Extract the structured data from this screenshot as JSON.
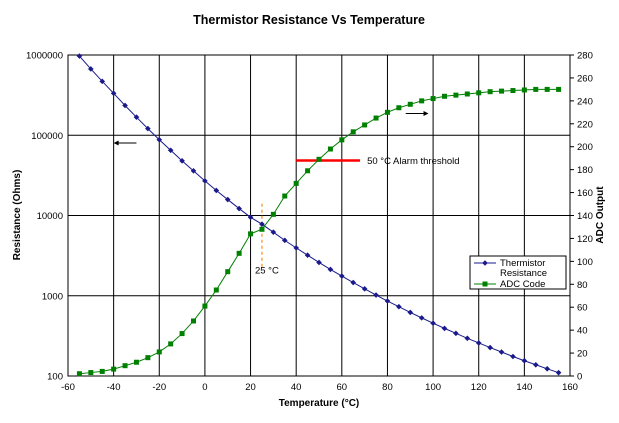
{
  "chart_data": {
    "type": "line",
    "title": "Thermistor Resistance Vs Temperature",
    "xlabel": "Temperature (°C)",
    "ylabel": "Resistance (Ohms)",
    "y2label": "ADC Output",
    "xlim": [
      -60,
      160
    ],
    "ylim": [
      100,
      1000000
    ],
    "yscale": "log",
    "y2lim": [
      0,
      280
    ],
    "xticks": [
      -60,
      -40,
      -20,
      0,
      20,
      40,
      60,
      80,
      100,
      120,
      140,
      160
    ],
    "yticks": [
      100,
      1000,
      10000,
      100000,
      1000000
    ],
    "ytick_labels": [
      "100",
      "1000",
      "10000",
      "100000",
      "1000000"
    ],
    "y2ticks": [
      0,
      20,
      40,
      60,
      80,
      100,
      120,
      140,
      160,
      180,
      200,
      220,
      240,
      260,
      280
    ],
    "grid": true,
    "legend_position": "right",
    "x": [
      -55,
      -50,
      -45,
      -40,
      -35,
      -30,
      -25,
      -20,
      -15,
      -10,
      -5,
      0,
      5,
      10,
      15,
      20,
      25,
      30,
      35,
      40,
      45,
      50,
      55,
      60,
      65,
      70,
      75,
      80,
      85,
      90,
      95,
      100,
      105,
      110,
      115,
      120,
      125,
      130,
      135,
      140,
      145,
      150,
      155
    ],
    "series": [
      {
        "name": "Thermistor Resistance",
        "axis": "left",
        "color": "#1a1a8c",
        "marker": "diamond",
        "values": [
          970000,
          670000,
          470000,
          333000,
          235000,
          168000,
          121000,
          88000,
          65000,
          48000,
          36000,
          27000,
          20500,
          15800,
          12200,
          9500,
          7800,
          6200,
          4900,
          3950,
          3200,
          2600,
          2130,
          1760,
          1460,
          1220,
          1020,
          860,
          730,
          620,
          530,
          455,
          392,
          340,
          295,
          258,
          226,
          199,
          175,
          155,
          138,
          123,
          110
        ]
      },
      {
        "name": "ADC Code",
        "axis": "right",
        "color": "#008000",
        "marker": "square",
        "values": [
          2,
          3,
          4,
          6,
          9,
          12,
          16,
          21,
          28,
          37,
          48,
          61,
          75,
          91,
          107,
          124,
          128,
          141,
          157,
          168,
          179,
          189,
          198,
          206,
          213,
          219,
          225,
          230,
          234,
          237,
          240,
          242,
          244,
          245,
          246,
          247,
          248,
          248.5,
          249,
          249.5,
          250,
          250,
          250
        ]
      }
    ],
    "annotations": {
      "alarm_label": "50 °C Alarm threshold",
      "alarm_x_range": [
        40,
        68
      ],
      "alarm_y2": 188,
      "alarm_color": "#ff0000",
      "ref_label": "25 °C",
      "ref_x": 25,
      "ref_color": "#ff8c1a",
      "left_arrow": {
        "x": [
          -30,
          -40
        ],
        "y": 80000
      },
      "right_arrow": {
        "x": [
          88,
          98
        ],
        "y2": 229
      }
    }
  }
}
